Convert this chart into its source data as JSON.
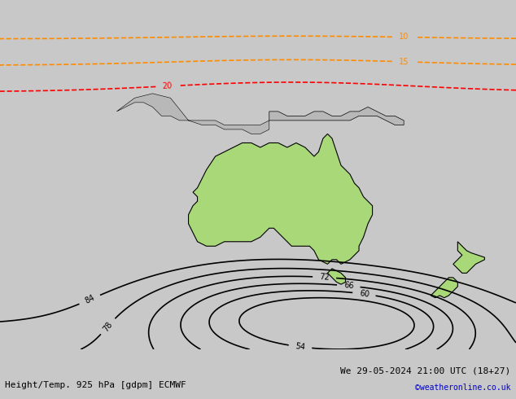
{
  "title_left": "Height/Temp. 925 hPa [gdpm] ECMWF",
  "title_right": "We 29-05-2024 21:00 UTC (18+27)",
  "credit": "©weatheronline.co.uk",
  "bg_color": "#c8c8c8",
  "australia_color": "#a8d878",
  "land_color": "#b8b8b8",
  "figsize": [
    6.34,
    4.9
  ],
  "dpi": 100
}
